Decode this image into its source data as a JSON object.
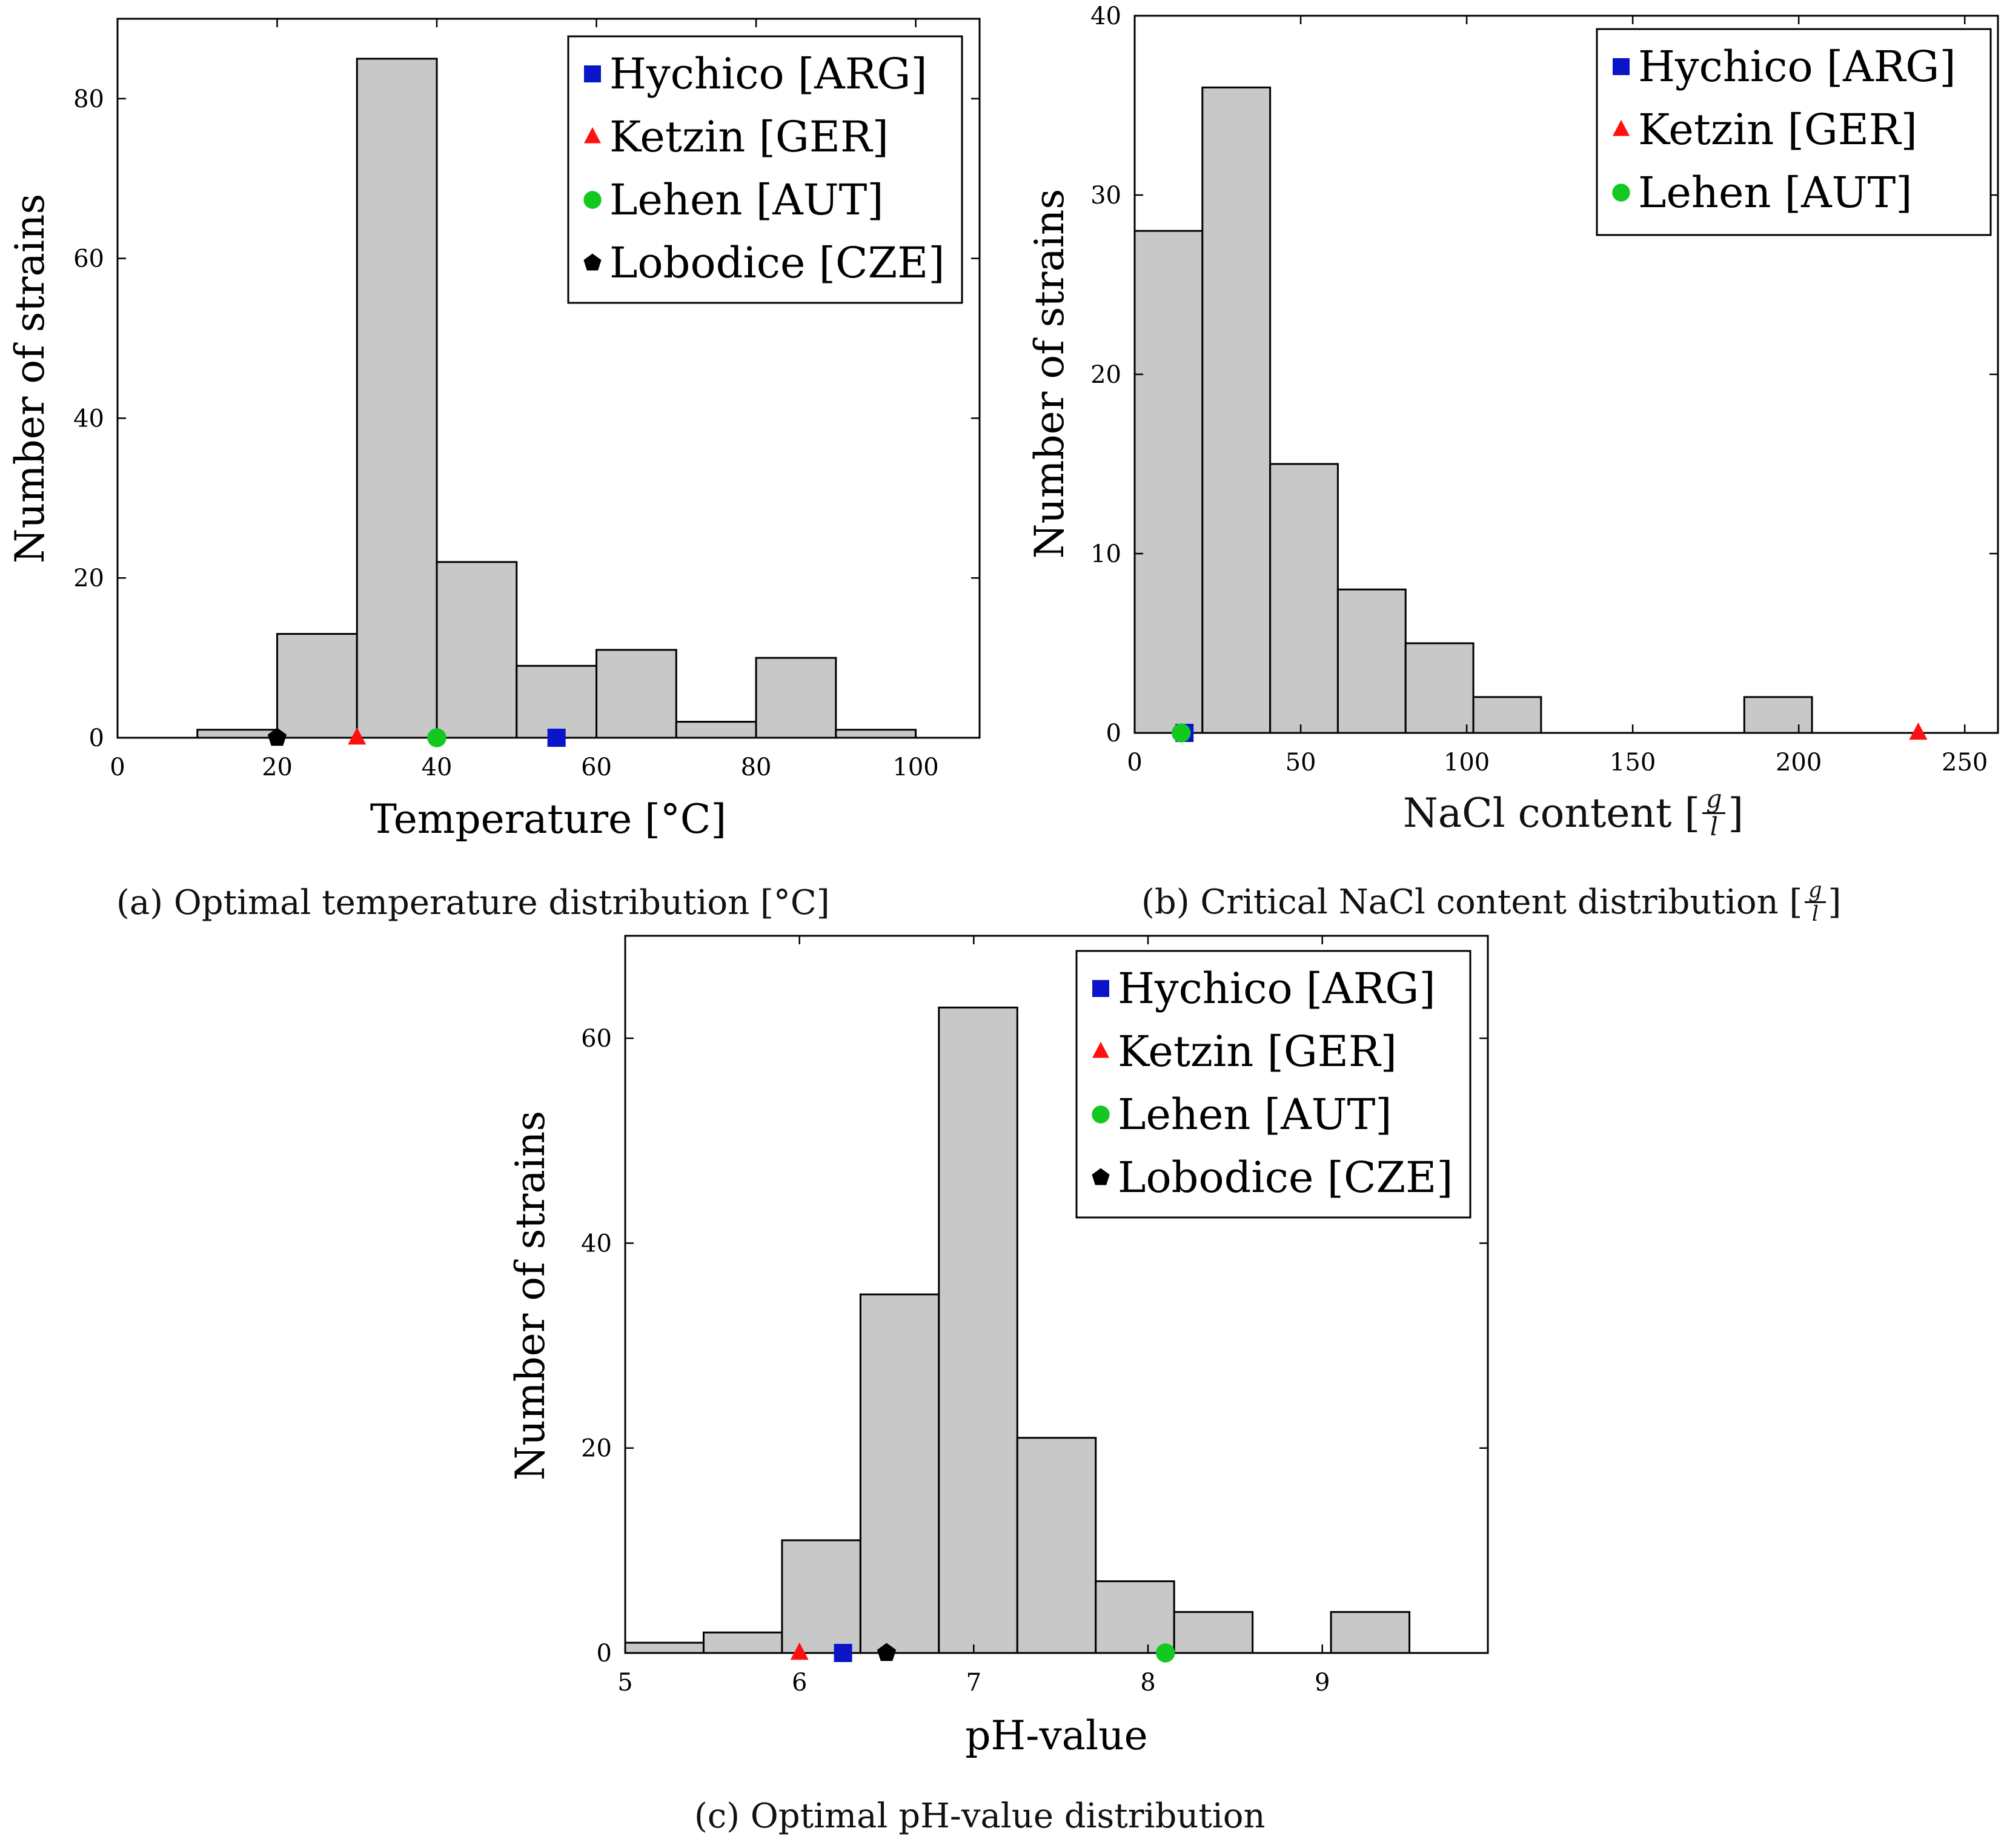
{
  "style": {
    "bar_fill": "#c8c8c8",
    "axis_color": "#000000",
    "marker_colors": {
      "Hychico [ARG]": "#0a14c8",
      "Ketzin [GER]": "#ff1010",
      "Lehen [AUT]": "#13c81f",
      "Lobodice [CZE]": "#000000"
    },
    "marker_icons": {
      "Hychico [ARG]": "square-icon",
      "Ketzin [GER]": "triangle-icon",
      "Lehen [AUT]": "circle-icon",
      "Lobodice [CZE]": "pentagon-icon"
    }
  },
  "captions": {
    "a": "(a) Optimal temperature distribution [°C]",
    "b_prefix": "(b) Critical NaCl content distribution [",
    "b_frac_num": "g",
    "b_frac_den": "l",
    "b_suffix": "]",
    "c": "(c) Optimal pH-value distribution"
  },
  "axis_label_parts": {
    "b_prefix": "NaCl content [",
    "b_frac_num": "g",
    "b_frac_den": "l",
    "b_suffix": "]"
  },
  "chart_data": [
    {
      "id": "a",
      "type": "bar",
      "title": "",
      "xlabel": "Temperature [°C]",
      "ylabel": "Number of strains",
      "xlim": [
        0,
        108
      ],
      "ylim": [
        0,
        90
      ],
      "xticks": [
        0,
        20,
        40,
        60,
        80,
        100
      ],
      "yticks": [
        0,
        20,
        40,
        60,
        80
      ],
      "bins": [
        {
          "from": 10,
          "to": 20,
          "count": 1
        },
        {
          "from": 20,
          "to": 30,
          "count": 13
        },
        {
          "from": 30,
          "to": 40,
          "count": 85
        },
        {
          "from": 40,
          "to": 50,
          "count": 22
        },
        {
          "from": 50,
          "to": 60,
          "count": 9
        },
        {
          "from": 60,
          "to": 70,
          "count": 11
        },
        {
          "from": 70,
          "to": 80,
          "count": 2
        },
        {
          "from": 80,
          "to": 90,
          "count": 10
        },
        {
          "from": 90,
          "to": 100,
          "count": 1
        }
      ],
      "sites": [
        {
          "name": "Hychico [ARG]",
          "x": 55,
          "y": 0
        },
        {
          "name": "Ketzin [GER]",
          "x": 30,
          "y": 0
        },
        {
          "name": "Lehen [AUT]",
          "x": 40,
          "y": 0
        },
        {
          "name": "Lobodice [CZE]",
          "x": 20,
          "y": 0
        }
      ],
      "legend": [
        "Hychico [ARG]",
        "Ketzin [GER]",
        "Lehen [AUT]",
        "Lobodice [CZE]"
      ],
      "legend_position": "top-right"
    },
    {
      "id": "b",
      "type": "bar",
      "title": "",
      "xlabel": "NaCl content [g/l]",
      "ylabel": "Number of strains",
      "xlim": [
        0,
        260
      ],
      "ylim": [
        0,
        40
      ],
      "xticks": [
        0,
        50,
        100,
        150,
        200,
        250
      ],
      "yticks": [
        0,
        10,
        20,
        30,
        40
      ],
      "bins": [
        {
          "from": 0,
          "to": 20.4,
          "count": 28
        },
        {
          "from": 20.4,
          "to": 40.8,
          "count": 36
        },
        {
          "from": 40.8,
          "to": 61.2,
          "count": 15
        },
        {
          "from": 61.2,
          "to": 81.6,
          "count": 8
        },
        {
          "from": 81.6,
          "to": 102,
          "count": 5
        },
        {
          "from": 102,
          "to": 122.4,
          "count": 2
        },
        {
          "from": 122.4,
          "to": 142.8,
          "count": 0
        },
        {
          "from": 142.8,
          "to": 163.2,
          "count": 0
        },
        {
          "from": 163.2,
          "to": 183.6,
          "count": 0
        },
        {
          "from": 183.6,
          "to": 204,
          "count": 2
        }
      ],
      "sites": [
        {
          "name": "Hychico [ARG]",
          "x": 15,
          "y": 0
        },
        {
          "name": "Ketzin [GER]",
          "x": 236,
          "y": 0
        },
        {
          "name": "Lehen [AUT]",
          "x": 14,
          "y": 0
        }
      ],
      "legend": [
        "Hychico [ARG]",
        "Ketzin [GER]",
        "Lehen [AUT]"
      ],
      "legend_position": "top-right"
    },
    {
      "id": "c",
      "type": "bar",
      "title": "",
      "xlabel": "pH-value",
      "ylabel": "Number of strains",
      "xlim": [
        5,
        9.95
      ],
      "ylim": [
        0,
        70
      ],
      "xticks": [
        5,
        6,
        7,
        8,
        9
      ],
      "yticks": [
        0,
        20,
        40,
        60
      ],
      "bins": [
        {
          "from": 5.0,
          "to": 5.45,
          "count": 1
        },
        {
          "from": 5.45,
          "to": 5.9,
          "count": 2
        },
        {
          "from": 5.9,
          "to": 6.35,
          "count": 11
        },
        {
          "from": 6.35,
          "to": 6.8,
          "count": 35
        },
        {
          "from": 6.8,
          "to": 7.25,
          "count": 63
        },
        {
          "from": 7.25,
          "to": 7.7,
          "count": 21
        },
        {
          "from": 7.7,
          "to": 8.15,
          "count": 7
        },
        {
          "from": 8.15,
          "to": 8.6,
          "count": 4
        },
        {
          "from": 8.6,
          "to": 9.05,
          "count": 0
        },
        {
          "from": 9.05,
          "to": 9.5,
          "count": 4
        }
      ],
      "sites": [
        {
          "name": "Hychico [ARG]",
          "x": 6.25,
          "y": 0
        },
        {
          "name": "Ketzin [GER]",
          "x": 6.0,
          "y": 0
        },
        {
          "name": "Lehen [AUT]",
          "x": 8.1,
          "y": 0
        },
        {
          "name": "Lobodice [CZE]",
          "x": 6.5,
          "y": 0
        }
      ],
      "legend": [
        "Hychico [ARG]",
        "Ketzin [GER]",
        "Lehen [AUT]",
        "Lobodice [CZE]"
      ],
      "legend_position": "top-right"
    }
  ]
}
